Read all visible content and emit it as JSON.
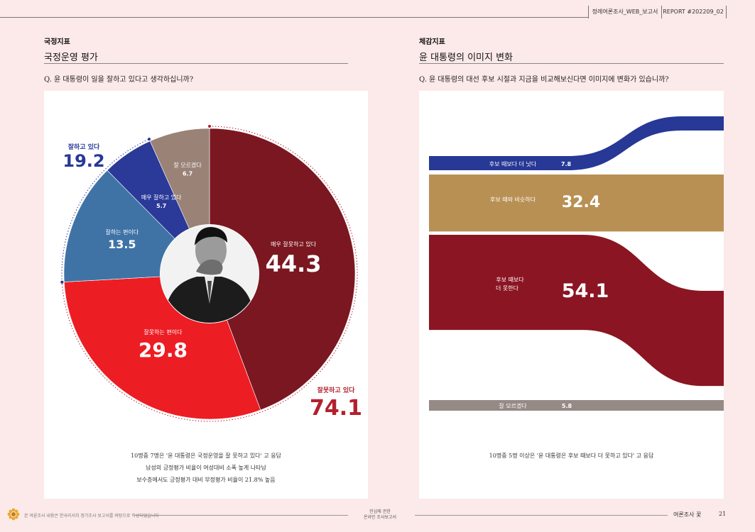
{
  "header": {
    "report_name": "정례여론조사_WEB_보고서",
    "report_code": "REPORT #202209_02"
  },
  "left": {
    "section_tag": "국정지표",
    "section_title": "국정운영 평가",
    "question": "Q.  윤 대통령이 일을 잘하고 있다고 생각하십니까?",
    "notes": [
      "10명중 7명은 '윤 대통령은 국정운영을 잘 못하고 있다' 고 응답",
      "남성의 긍정평가 비율이 여성대비 소폭 높게 나타남",
      "보수층에서도 긍정평가 대비 부정평가 비율이 21.8% 높음"
    ],
    "summary_positive": {
      "label": "잘하고 있다",
      "value": "19.2",
      "color": "#273896"
    },
    "summary_negative": {
      "label": "잘못하고 있다",
      "value": "74.1",
      "color": "#b3202d"
    },
    "center_image": "photo-of-person-covering-face"
  },
  "right": {
    "section_tag": "체감지표",
    "section_title": "윤 대통령의 이미지 변화",
    "question": "Q.  윤 대통령의 대선 후보 시절과 지금을 비교해보신다면 이미지에 변화가 있습니까?",
    "notes": [
      "10명중 5명 이상은 '윤 대통령은 후보 때보다 더 못하고 있다' 고 응답"
    ]
  },
  "chart_data": [
    {
      "type": "pie",
      "title": "국정운영 평가",
      "slices": [
        {
          "label": "매우 잘못하고 있다",
          "value": 44.3,
          "display": "44.3",
          "color": "#7b1720"
        },
        {
          "label": "잘못하는 편이다",
          "value": 29.8,
          "display": "29.8",
          "color": "#ed1d24"
        },
        {
          "label": "잘하는 편이다",
          "value": 13.5,
          "display": "13.5",
          "color": "#3f73a6"
        },
        {
          "label": "매우 잘하고 있다",
          "value": 5.7,
          "display": "5.7",
          "color": "#2b3a98"
        },
        {
          "label": "잘 모르겠다",
          "value": 6.7,
          "display": "6.7",
          "color": "#9a8277"
        }
      ],
      "groups": [
        {
          "label": "잘하고 있다",
          "value": 19.2
        },
        {
          "label": "잘못하고 있다",
          "value": 74.1
        }
      ]
    },
    {
      "type": "bar",
      "title": "윤 대통령의 이미지 변화",
      "categories": [
        "후보 때보다 더 낫다",
        "후보 때와 비슷하다",
        "후보 때보다 더 못한다",
        "잘 모르겠다"
      ],
      "values": [
        7.8,
        32.4,
        54.1,
        5.8
      ],
      "display": [
        "7.8",
        "32.4",
        "54.1",
        "5.8"
      ],
      "colors": [
        "#273896",
        "#b99054",
        "#8b1522",
        "#958a86"
      ]
    }
  ],
  "footer": {
    "left_text": "본 여론조사 내용은 한국리서치 정기조사 보고서를 바탕으로 작성되었습니다",
    "center_line1": "민심에 관한",
    "center_line2": "온라인 조사보고서",
    "right_label": "여론조사 꽃",
    "page_number": "21"
  }
}
